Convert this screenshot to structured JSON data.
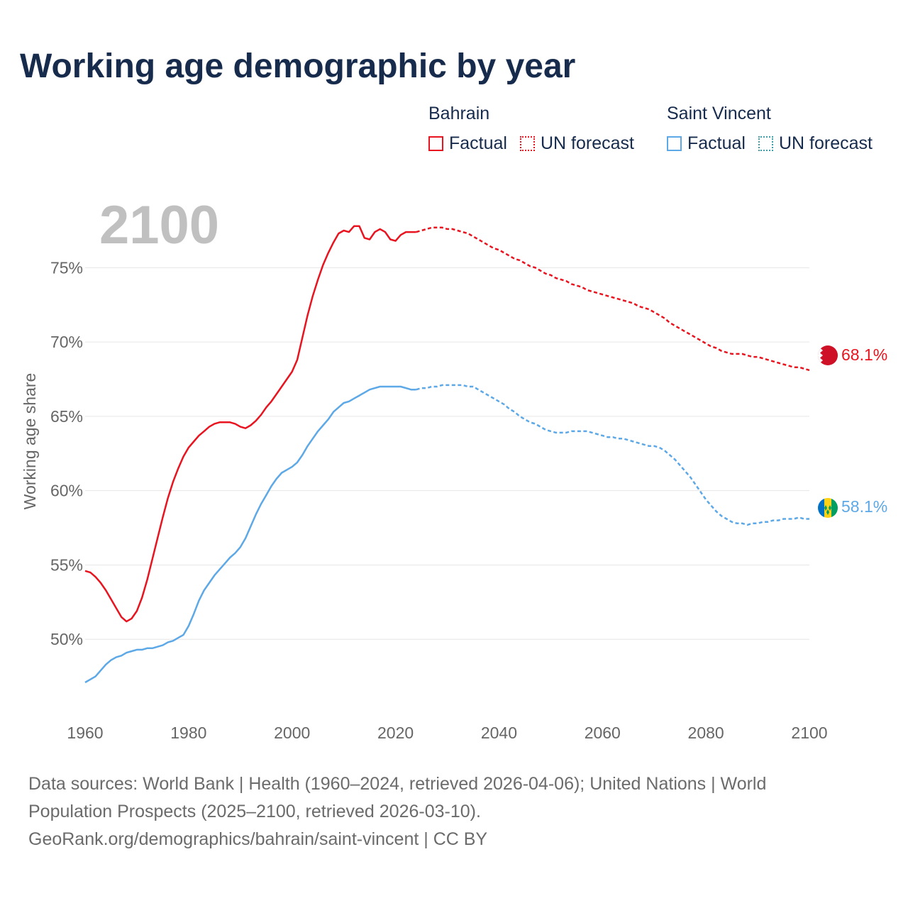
{
  "title": "Working age demographic by year",
  "legend": {
    "groups": [
      {
        "title": "Bahrain",
        "factual": "Factual",
        "forecast": "UN forecast",
        "color": "#e8141f"
      },
      {
        "title": "Saint Vincent",
        "factual": "Factual",
        "forecast": "UN forecast",
        "color": "#5da8e6"
      }
    ]
  },
  "footer": {
    "line1": "Data sources: World Bank | Health (1960–2024, retrieved 2026-04-06); United Nations | World",
    "line2": "Population Prospects (2025–2100, retrieved 2026-03-10).",
    "line3": "GeoRank.org/demographics/bahrain/saint-vincent | CC BY"
  },
  "chart_data": {
    "type": "line",
    "title": "Working age demographic by year",
    "ylabel": "Working age share",
    "xlabel": "",
    "year_label": "2100",
    "xlim": [
      1960,
      2100
    ],
    "ylim": [
      45,
      78.5
    ],
    "x_ticks": [
      1960,
      1980,
      2000,
      2020,
      2040,
      2060,
      2080,
      2100
    ],
    "y_ticks": [
      50,
      55,
      60,
      65,
      70,
      75
    ],
    "y_tick_labels": [
      "50%",
      "55%",
      "60%",
      "65%",
      "70%",
      "75%"
    ],
    "factual_end_year": 2024,
    "series": [
      {
        "name": "Bahrain",
        "color": "#e8141f",
        "end_label": "68.1%",
        "flag": "bahrain-flag",
        "points": [
          [
            1960,
            54.6
          ],
          [
            1961,
            54.5
          ],
          [
            1962,
            54.2
          ],
          [
            1963,
            53.8
          ],
          [
            1964,
            53.3
          ],
          [
            1965,
            52.7
          ],
          [
            1966,
            52.1
          ],
          [
            1967,
            51.5
          ],
          [
            1968,
            51.2
          ],
          [
            1969,
            51.4
          ],
          [
            1970,
            51.9
          ],
          [
            1971,
            52.8
          ],
          [
            1972,
            54.0
          ],
          [
            1973,
            55.4
          ],
          [
            1974,
            56.8
          ],
          [
            1975,
            58.2
          ],
          [
            1976,
            59.5
          ],
          [
            1977,
            60.6
          ],
          [
            1978,
            61.5
          ],
          [
            1979,
            62.3
          ],
          [
            1980,
            62.9
          ],
          [
            1981,
            63.3
          ],
          [
            1982,
            63.7
          ],
          [
            1983,
            64.0
          ],
          [
            1984,
            64.3
          ],
          [
            1985,
            64.5
          ],
          [
            1986,
            64.6
          ],
          [
            1987,
            64.6
          ],
          [
            1988,
            64.6
          ],
          [
            1989,
            64.5
          ],
          [
            1990,
            64.3
          ],
          [
            1991,
            64.2
          ],
          [
            1992,
            64.4
          ],
          [
            1993,
            64.7
          ],
          [
            1994,
            65.1
          ],
          [
            1995,
            65.6
          ],
          [
            1996,
            66.0
          ],
          [
            1997,
            66.5
          ],
          [
            1998,
            67.0
          ],
          [
            1999,
            67.5
          ],
          [
            2000,
            68.0
          ],
          [
            2001,
            68.8
          ],
          [
            2002,
            70.3
          ],
          [
            2003,
            71.8
          ],
          [
            2004,
            73.1
          ],
          [
            2005,
            74.2
          ],
          [
            2006,
            75.2
          ],
          [
            2007,
            76.0
          ],
          [
            2008,
            76.7
          ],
          [
            2009,
            77.3
          ],
          [
            2010,
            77.5
          ],
          [
            2011,
            77.4
          ],
          [
            2012,
            77.8
          ],
          [
            2013,
            77.8
          ],
          [
            2014,
            77.0
          ],
          [
            2015,
            76.9
          ],
          [
            2016,
            77.4
          ],
          [
            2017,
            77.6
          ],
          [
            2018,
            77.4
          ],
          [
            2019,
            76.9
          ],
          [
            2020,
            76.8
          ],
          [
            2021,
            77.2
          ],
          [
            2022,
            77.4
          ],
          [
            2023,
            77.4
          ],
          [
            2024,
            77.4
          ],
          [
            2025,
            77.5
          ],
          [
            2026,
            77.6
          ],
          [
            2027,
            77.7
          ],
          [
            2028,
            77.7
          ],
          [
            2029,
            77.7
          ],
          [
            2030,
            77.6
          ],
          [
            2031,
            77.6
          ],
          [
            2032,
            77.5
          ],
          [
            2033,
            77.4
          ],
          [
            2034,
            77.3
          ],
          [
            2035,
            77.1
          ],
          [
            2036,
            76.9
          ],
          [
            2037,
            76.7
          ],
          [
            2038,
            76.5
          ],
          [
            2039,
            76.3
          ],
          [
            2040,
            76.2
          ],
          [
            2041,
            76.0
          ],
          [
            2042,
            75.8
          ],
          [
            2043,
            75.6
          ],
          [
            2044,
            75.5
          ],
          [
            2045,
            75.3
          ],
          [
            2046,
            75.1
          ],
          [
            2047,
            75.0
          ],
          [
            2048,
            74.8
          ],
          [
            2049,
            74.6
          ],
          [
            2050,
            74.5
          ],
          [
            2051,
            74.3
          ],
          [
            2052,
            74.2
          ],
          [
            2053,
            74.1
          ],
          [
            2054,
            73.9
          ],
          [
            2055,
            73.8
          ],
          [
            2056,
            73.7
          ],
          [
            2057,
            73.5
          ],
          [
            2058,
            73.4
          ],
          [
            2059,
            73.3
          ],
          [
            2060,
            73.2
          ],
          [
            2061,
            73.1
          ],
          [
            2062,
            73.0
          ],
          [
            2063,
            72.9
          ],
          [
            2064,
            72.8
          ],
          [
            2065,
            72.7
          ],
          [
            2066,
            72.6
          ],
          [
            2067,
            72.4
          ],
          [
            2068,
            72.3
          ],
          [
            2069,
            72.2
          ],
          [
            2070,
            72.0
          ],
          [
            2071,
            71.8
          ],
          [
            2072,
            71.6
          ],
          [
            2073,
            71.3
          ],
          [
            2074,
            71.1
          ],
          [
            2075,
            70.9
          ],
          [
            2076,
            70.7
          ],
          [
            2077,
            70.5
          ],
          [
            2078,
            70.3
          ],
          [
            2079,
            70.1
          ],
          [
            2080,
            69.9
          ],
          [
            2081,
            69.7
          ],
          [
            2082,
            69.6
          ],
          [
            2083,
            69.4
          ],
          [
            2084,
            69.3
          ],
          [
            2085,
            69.2
          ],
          [
            2086,
            69.2
          ],
          [
            2087,
            69.2
          ],
          [
            2088,
            69.1
          ],
          [
            2089,
            69.0
          ],
          [
            2090,
            69.0
          ],
          [
            2091,
            68.9
          ],
          [
            2092,
            68.8
          ],
          [
            2093,
            68.7
          ],
          [
            2094,
            68.6
          ],
          [
            2095,
            68.5
          ],
          [
            2096,
            68.4
          ],
          [
            2097,
            68.3
          ],
          [
            2098,
            68.3
          ],
          [
            2099,
            68.2
          ],
          [
            2100,
            68.1
          ]
        ]
      },
      {
        "name": "Saint Vincent",
        "color": "#5da8e6",
        "end_label": "58.1%",
        "flag": "saint-vincent-flag",
        "points": [
          [
            1960,
            47.1
          ],
          [
            1961,
            47.3
          ],
          [
            1962,
            47.5
          ],
          [
            1963,
            47.9
          ],
          [
            1964,
            48.3
          ],
          [
            1965,
            48.6
          ],
          [
            1966,
            48.8
          ],
          [
            1967,
            48.9
          ],
          [
            1968,
            49.1
          ],
          [
            1969,
            49.2
          ],
          [
            1970,
            49.3
          ],
          [
            1971,
            49.3
          ],
          [
            1972,
            49.4
          ],
          [
            1973,
            49.4
          ],
          [
            1974,
            49.5
          ],
          [
            1975,
            49.6
          ],
          [
            1976,
            49.8
          ],
          [
            1977,
            49.9
          ],
          [
            1978,
            50.1
          ],
          [
            1979,
            50.3
          ],
          [
            1980,
            50.9
          ],
          [
            1981,
            51.7
          ],
          [
            1982,
            52.6
          ],
          [
            1983,
            53.3
          ],
          [
            1984,
            53.8
          ],
          [
            1985,
            54.3
          ],
          [
            1986,
            54.7
          ],
          [
            1987,
            55.1
          ],
          [
            1988,
            55.5
          ],
          [
            1989,
            55.8
          ],
          [
            1990,
            56.2
          ],
          [
            1991,
            56.8
          ],
          [
            1992,
            57.6
          ],
          [
            1993,
            58.4
          ],
          [
            1994,
            59.1
          ],
          [
            1995,
            59.7
          ],
          [
            1996,
            60.3
          ],
          [
            1997,
            60.8
          ],
          [
            1998,
            61.2
          ],
          [
            1999,
            61.4
          ],
          [
            2000,
            61.6
          ],
          [
            2001,
            61.9
          ],
          [
            2002,
            62.4
          ],
          [
            2003,
            63.0
          ],
          [
            2004,
            63.5
          ],
          [
            2005,
            64.0
          ],
          [
            2006,
            64.4
          ],
          [
            2007,
            64.8
          ],
          [
            2008,
            65.3
          ],
          [
            2009,
            65.6
          ],
          [
            2010,
            65.9
          ],
          [
            2011,
            66.0
          ],
          [
            2012,
            66.2
          ],
          [
            2013,
            66.4
          ],
          [
            2014,
            66.6
          ],
          [
            2015,
            66.8
          ],
          [
            2016,
            66.9
          ],
          [
            2017,
            67.0
          ],
          [
            2018,
            67.0
          ],
          [
            2019,
            67.0
          ],
          [
            2020,
            67.0
          ],
          [
            2021,
            67.0
          ],
          [
            2022,
            66.9
          ],
          [
            2023,
            66.8
          ],
          [
            2024,
            66.8
          ],
          [
            2025,
            66.9
          ],
          [
            2026,
            66.9
          ],
          [
            2027,
            67.0
          ],
          [
            2028,
            67.0
          ],
          [
            2029,
            67.1
          ],
          [
            2030,
            67.1
          ],
          [
            2031,
            67.1
          ],
          [
            2032,
            67.1
          ],
          [
            2033,
            67.1
          ],
          [
            2034,
            67.0
          ],
          [
            2035,
            67.0
          ],
          [
            2036,
            66.8
          ],
          [
            2037,
            66.6
          ],
          [
            2038,
            66.4
          ],
          [
            2039,
            66.2
          ],
          [
            2040,
            66.0
          ],
          [
            2041,
            65.8
          ],
          [
            2042,
            65.5
          ],
          [
            2043,
            65.3
          ],
          [
            2044,
            65.0
          ],
          [
            2045,
            64.8
          ],
          [
            2046,
            64.6
          ],
          [
            2047,
            64.5
          ],
          [
            2048,
            64.3
          ],
          [
            2049,
            64.1
          ],
          [
            2050,
            64.0
          ],
          [
            2051,
            63.9
          ],
          [
            2052,
            63.9
          ],
          [
            2053,
            63.9
          ],
          [
            2054,
            64.0
          ],
          [
            2055,
            64.0
          ],
          [
            2056,
            64.0
          ],
          [
            2057,
            64.0
          ],
          [
            2058,
            63.9
          ],
          [
            2059,
            63.8
          ],
          [
            2060,
            63.7
          ],
          [
            2061,
            63.6
          ],
          [
            2062,
            63.6
          ],
          [
            2063,
            63.5
          ],
          [
            2064,
            63.5
          ],
          [
            2065,
            63.4
          ],
          [
            2066,
            63.3
          ],
          [
            2067,
            63.2
          ],
          [
            2068,
            63.1
          ],
          [
            2069,
            63.0
          ],
          [
            2070,
            63.0
          ],
          [
            2071,
            62.9
          ],
          [
            2072,
            62.7
          ],
          [
            2073,
            62.4
          ],
          [
            2074,
            62.1
          ],
          [
            2075,
            61.7
          ],
          [
            2076,
            61.3
          ],
          [
            2077,
            60.9
          ],
          [
            2078,
            60.4
          ],
          [
            2079,
            59.9
          ],
          [
            2080,
            59.4
          ],
          [
            2081,
            59.0
          ],
          [
            2082,
            58.6
          ],
          [
            2083,
            58.3
          ],
          [
            2084,
            58.1
          ],
          [
            2085,
            57.9
          ],
          [
            2086,
            57.8
          ],
          [
            2087,
            57.8
          ],
          [
            2088,
            57.7
          ],
          [
            2089,
            57.8
          ],
          [
            2090,
            57.8
          ],
          [
            2091,
            57.9
          ],
          [
            2092,
            57.9
          ],
          [
            2093,
            58.0
          ],
          [
            2094,
            58.0
          ],
          [
            2095,
            58.1
          ],
          [
            2096,
            58.1
          ],
          [
            2097,
            58.1
          ],
          [
            2098,
            58.2
          ],
          [
            2099,
            58.1
          ],
          [
            2100,
            58.1
          ]
        ]
      }
    ]
  }
}
